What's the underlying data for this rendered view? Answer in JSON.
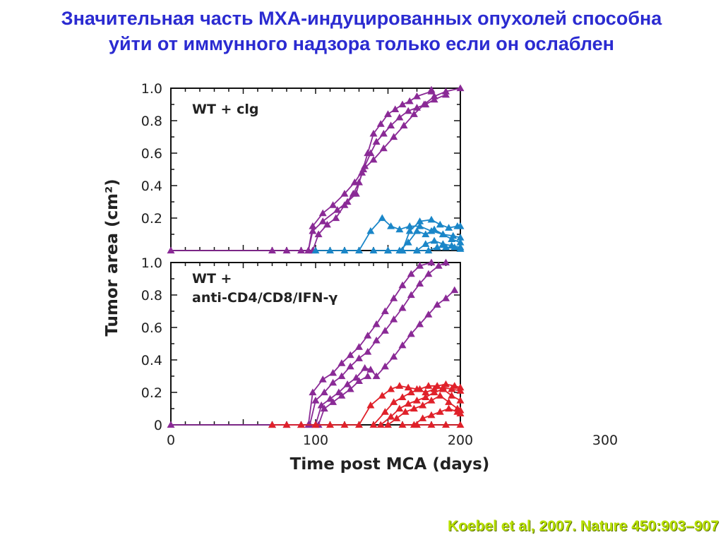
{
  "slide": {
    "title_line1": "Значительная часть МХА-индуцированных опухолей способна",
    "title_line2": "уйти от иммунного надзора только если он ослаблен",
    "citation": "Koebel et al, 2007. Nature 450:903–907"
  },
  "colors": {
    "purple": "#8a2a96",
    "blue": "#1a86c8",
    "red": "#e0212a",
    "title": "#2b2bd1",
    "citation": "#b8e000"
  },
  "chart_data": {
    "type": "line",
    "xlabel": "Time post MCA (days)",
    "ylabel": "Tumor area (cm²)",
    "xlim": [
      0,
      200
    ],
    "x_ticks": [
      "0",
      "100",
      "200",
      "300"
    ],
    "panels": [
      {
        "label_line1": "WT + clg",
        "label_line2": "",
        "ylim": [
          0,
          1.0
        ],
        "y_ticks": [
          "1.0",
          "0.8",
          "0.6",
          "0.4",
          "0.2"
        ],
        "series": [
          {
            "color": "purple",
            "points": [
              [
                0,
                0
              ],
              [
                70,
                0
              ],
              [
                80,
                0
              ],
              [
                90,
                0
              ],
              [
                95,
                0
              ],
              [
                98,
                0.15
              ],
              [
                105,
                0.23
              ],
              [
                112,
                0.28
              ],
              [
                120,
                0.35
              ],
              [
                127,
                0.42
              ],
              [
                133,
                0.5
              ],
              [
                140,
                0.56
              ],
              [
                147,
                0.63
              ],
              [
                154,
                0.7
              ],
              [
                161,
                0.77
              ],
              [
                168,
                0.84
              ],
              [
                175,
                0.9
              ],
              [
                182,
                0.95
              ],
              [
                190,
                0.98
              ],
              [
                200,
                1.0
              ]
            ]
          },
          {
            "color": "purple",
            "points": [
              [
                95,
                0
              ],
              [
                98,
                0.12
              ],
              [
                105,
                0.18
              ],
              [
                115,
                0.25
              ],
              [
                122,
                0.3
              ],
              [
                128,
                0.35
              ],
              [
                132,
                0.48
              ],
              [
                136,
                0.6
              ],
              [
                140,
                0.72
              ],
              [
                145,
                0.78
              ],
              [
                150,
                0.84
              ],
              [
                155,
                0.87
              ],
              [
                160,
                0.9
              ],
              [
                165,
                0.92
              ],
              [
                170,
                0.95
              ],
              [
                180,
                0.98
              ],
              [
                180,
                0.99
              ]
            ]
          },
          {
            "color": "purple",
            "points": [
              [
                98,
                0
              ],
              [
                102,
                0.1
              ],
              [
                108,
                0.16
              ],
              [
                114,
                0.2
              ],
              [
                120,
                0.28
              ],
              [
                126,
                0.35
              ],
              [
                130,
                0.42
              ],
              [
                134,
                0.52
              ],
              [
                138,
                0.6
              ],
              [
                142,
                0.67
              ],
              [
                147,
                0.72
              ],
              [
                152,
                0.77
              ],
              [
                158,
                0.82
              ],
              [
                164,
                0.86
              ],
              [
                170,
                0.88
              ],
              [
                176,
                0.9
              ],
              [
                182,
                0.93
              ],
              [
                190,
                0.96
              ]
            ]
          },
          {
            "color": "blue",
            "points": [
              [
                100,
                0
              ],
              [
                110,
                0
              ],
              [
                120,
                0
              ],
              [
                130,
                0
              ],
              [
                138,
                0.12
              ],
              [
                146,
                0.2
              ],
              [
                152,
                0.15
              ],
              [
                158,
                0.13
              ],
              [
                165,
                0.15
              ],
              [
                172,
                0.15
              ],
              [
                180,
                0.12
              ],
              [
                188,
                0.1
              ],
              [
                195,
                0.09
              ],
              [
                200,
                0.08
              ]
            ]
          },
          {
            "color": "blue",
            "points": [
              [
                140,
                0
              ],
              [
                150,
                0
              ],
              [
                160,
                0
              ],
              [
                165,
                0.12
              ],
              [
                172,
                0.18
              ],
              [
                180,
                0.19
              ],
              [
                186,
                0.16
              ],
              [
                192,
                0.14
              ],
              [
                198,
                0.15
              ],
              [
                200,
                0.15
              ]
            ]
          },
          {
            "color": "blue",
            "points": [
              [
                150,
                0
              ],
              [
                158,
                0
              ],
              [
                164,
                0.05
              ],
              [
                170,
                0.12
              ],
              [
                176,
                0.1
              ],
              [
                182,
                0.13
              ],
              [
                188,
                0.1
              ],
              [
                194,
                0.07
              ],
              [
                200,
                0.05
              ]
            ]
          },
          {
            "color": "blue",
            "points": [
              [
                160,
                0
              ],
              [
                170,
                0
              ],
              [
                176,
                0.04
              ],
              [
                182,
                0.06
              ],
              [
                188,
                0.04
              ],
              [
                194,
                0.03
              ],
              [
                200,
                0.02
              ]
            ]
          },
          {
            "color": "blue",
            "points": [
              [
                170,
                0
              ],
              [
                178,
                0
              ],
              [
                184,
                0.02
              ],
              [
                190,
                0.02
              ],
              [
                196,
                0.02
              ],
              [
                200,
                0.01
              ]
            ]
          }
        ]
      },
      {
        "label_line1": "WT +",
        "label_line2": "anti-CD4/CD8/IFN-γ",
        "ylim": [
          0,
          1.0
        ],
        "y_ticks": [
          "1.0",
          "0.8",
          "0.6",
          "0.4",
          "0.2",
          "0"
        ],
        "series": [
          {
            "color": "purple",
            "points": [
              [
                0,
                0
              ],
              [
                70,
                0
              ],
              [
                80,
                0
              ],
              [
                90,
                0
              ],
              [
                95,
                0
              ],
              [
                98,
                0.2
              ],
              [
                105,
                0.28
              ],
              [
                112,
                0.32
              ],
              [
                118,
                0.38
              ],
              [
                124,
                0.43
              ],
              [
                130,
                0.48
              ],
              [
                136,
                0.55
              ],
              [
                142,
                0.62
              ],
              [
                148,
                0.7
              ],
              [
                154,
                0.78
              ],
              [
                160,
                0.86
              ],
              [
                166,
                0.93
              ],
              [
                172,
                0.98
              ],
              [
                180,
                1.0
              ]
            ]
          },
          {
            "color": "purple",
            "points": [
              [
                96,
                0
              ],
              [
                100,
                0.15
              ],
              [
                106,
                0.2
              ],
              [
                112,
                0.26
              ],
              [
                118,
                0.3
              ],
              [
                124,
                0.36
              ],
              [
                130,
                0.41
              ],
              [
                136,
                0.45
              ],
              [
                142,
                0.52
              ],
              [
                148,
                0.58
              ],
              [
                154,
                0.65
              ],
              [
                160,
                0.72
              ],
              [
                166,
                0.8
              ],
              [
                172,
                0.87
              ],
              [
                178,
                0.93
              ],
              [
                185,
                0.98
              ],
              [
                190,
                1.0
              ]
            ]
          },
          {
            "color": "purple",
            "points": [
              [
                100,
                0
              ],
              [
                104,
                0.12
              ],
              [
                110,
                0.16
              ],
              [
                116,
                0.2
              ],
              [
                122,
                0.25
              ],
              [
                128,
                0.29
              ],
              [
                134,
                0.35
              ],
              [
                138,
                0.34
              ],
              [
                142,
                0.3
              ],
              [
                148,
                0.36
              ],
              [
                154,
                0.42
              ],
              [
                160,
                0.49
              ],
              [
                166,
                0.56
              ],
              [
                172,
                0.62
              ],
              [
                178,
                0.68
              ],
              [
                184,
                0.74
              ],
              [
                190,
                0.78
              ],
              [
                196,
                0.83
              ]
            ]
          },
          {
            "color": "purple",
            "points": [
              [
                102,
                0
              ],
              [
                106,
                0.1
              ],
              [
                112,
                0.14
              ],
              [
                118,
                0.18
              ],
              [
                124,
                0.22
              ],
              [
                130,
                0.27
              ],
              [
                136,
                0.3
              ]
            ]
          },
          {
            "color": "red",
            "points": [
              [
                70,
                0
              ],
              [
                80,
                0
              ],
              [
                90,
                0
              ],
              [
                100,
                0
              ],
              [
                110,
                0
              ],
              [
                120,
                0
              ],
              [
                130,
                0
              ],
              [
                138,
                0.12
              ],
              [
                146,
                0.18
              ],
              [
                152,
                0.22
              ],
              [
                158,
                0.24
              ],
              [
                164,
                0.23
              ],
              [
                170,
                0.22
              ],
              [
                176,
                0.2
              ],
              [
                182,
                0.22
              ],
              [
                188,
                0.23
              ],
              [
                194,
                0.22
              ],
              [
                200,
                0.21
              ]
            ]
          },
          {
            "color": "red",
            "points": [
              [
                140,
                0
              ],
              [
                148,
                0.08
              ],
              [
                154,
                0.14
              ],
              [
                160,
                0.17
              ],
              [
                166,
                0.2
              ],
              [
                172,
                0.22
              ],
              [
                178,
                0.24
              ],
              [
                184,
                0.24
              ],
              [
                190,
                0.25
              ],
              [
                196,
                0.24
              ],
              [
                200,
                0.23
              ]
            ]
          },
          {
            "color": "red",
            "points": [
              [
                145,
                0
              ],
              [
                152,
                0.05
              ],
              [
                158,
                0.1
              ],
              [
                164,
                0.13
              ],
              [
                170,
                0.15
              ],
              [
                176,
                0.17
              ],
              [
                182,
                0.2
              ],
              [
                188,
                0.22
              ],
              [
                194,
                0.18
              ],
              [
                200,
                0.15
              ]
            ]
          },
          {
            "color": "red",
            "points": [
              [
                150,
                0
              ],
              [
                156,
                0.04
              ],
              [
                162,
                0.08
              ],
              [
                168,
                0.1
              ],
              [
                174,
                0.12
              ],
              [
                180,
                0.15
              ],
              [
                186,
                0.18
              ],
              [
                192,
                0.14
              ],
              [
                198,
                0.1
              ],
              [
                200,
                0.09
              ]
            ]
          },
          {
            "color": "red",
            "points": [
              [
                160,
                0
              ],
              [
                168,
                0
              ],
              [
                174,
                0.04
              ],
              [
                180,
                0.06
              ],
              [
                186,
                0.08
              ],
              [
                192,
                0.1
              ],
              [
                198,
                0.08
              ],
              [
                200,
                0.07
              ]
            ]
          },
          {
            "color": "red",
            "points": [
              [
                170,
                0
              ],
              [
                180,
                0
              ],
              [
                190,
                0
              ],
              [
                200,
                0
              ]
            ]
          }
        ]
      }
    ]
  }
}
